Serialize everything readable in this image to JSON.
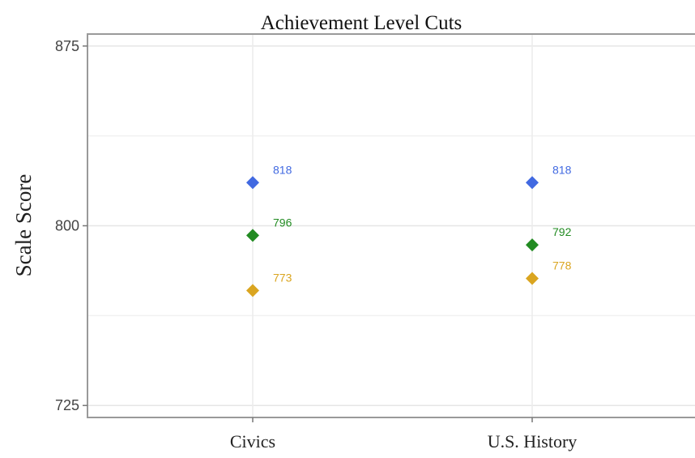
{
  "chart_data": {
    "type": "scatter",
    "title": "Achievement Level Cuts",
    "xlabel": "",
    "ylabel": "Scale Score",
    "categories": [
      "Civics",
      "U.S. History"
    ],
    "ylim": [
      720,
      880
    ],
    "yticks": [
      725,
      800,
      875
    ],
    "grid": true,
    "legend": "none",
    "series": [
      {
        "color": "#4169E1",
        "values": [
          818,
          818
        ]
      },
      {
        "color": "#228B22",
        "values": [
          796,
          792
        ]
      },
      {
        "color": "#DAA520",
        "values": [
          773,
          778
        ]
      }
    ]
  }
}
